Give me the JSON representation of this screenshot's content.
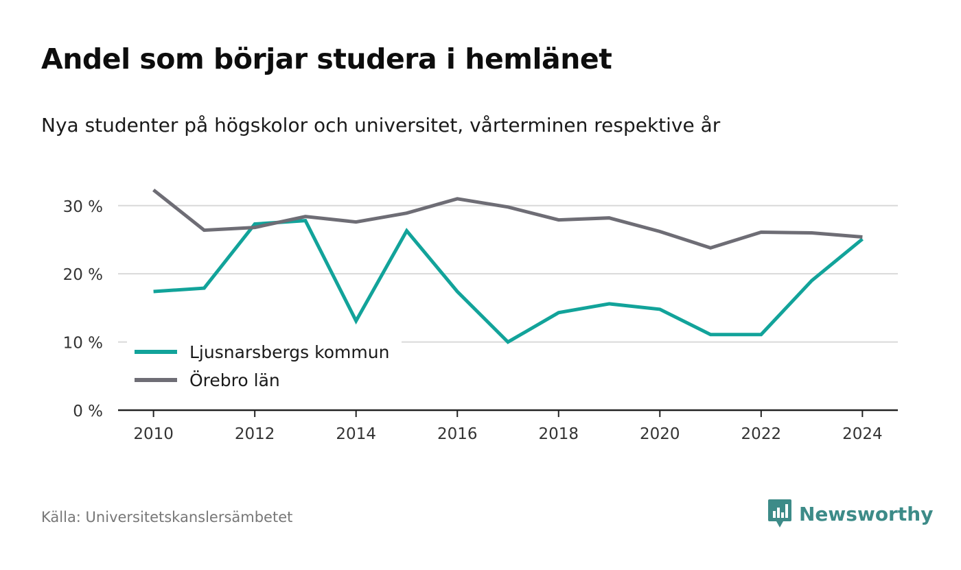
{
  "title": "Andel som börjar studera i hemlänet",
  "subtitle": "Nya studenter på högskolor och universitet, vårterminen respektive år",
  "source": "Källa: Universitetskanslersämbetet",
  "brand": {
    "name": "Newsworthy",
    "icon": "newsworthy-logo-icon",
    "color": "#3d8b88"
  },
  "chart_data": {
    "type": "line",
    "x": [
      2010,
      2011,
      2012,
      2013,
      2014,
      2015,
      2016,
      2017,
      2018,
      2019,
      2020,
      2021,
      2022,
      2023,
      2024
    ],
    "x_ticks": [
      "2010",
      "2012",
      "2014",
      "2016",
      "2018",
      "2020",
      "2022",
      "2024"
    ],
    "y_ticks": [
      "0 %",
      "10 %",
      "20 %",
      "30 %"
    ],
    "ylim": [
      0,
      34
    ],
    "xlim": [
      2009.3,
      2024.7
    ],
    "grid": true,
    "legend_position": "bottom-left",
    "series": [
      {
        "name": "Ljusnarsbergs kommun",
        "color": "#12a39a",
        "values": [
          17.4,
          17.9,
          27.3,
          27.8,
          13.1,
          26.3,
          17.4,
          10.0,
          14.3,
          15.6,
          14.8,
          11.1,
          11.1,
          19.0,
          25.1
        ]
      },
      {
        "name": "Örebro län",
        "color": "#6e6d75",
        "values": [
          32.3,
          26.4,
          26.8,
          28.4,
          27.6,
          28.9,
          31.0,
          29.8,
          27.9,
          28.2,
          26.2,
          23.8,
          26.1,
          26.0,
          25.4
        ]
      }
    ]
  }
}
